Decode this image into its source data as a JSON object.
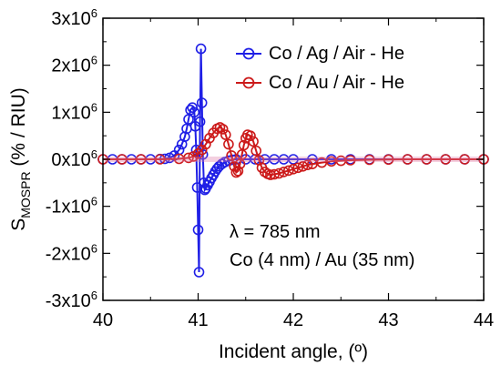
{
  "chart_data": {
    "type": "scatter",
    "xlabel": "Incident angle, (º)",
    "ylabel": "S",
    "ylabel_subscript": "MOSPR",
    "ylabel_suffix": " (% / RIU)",
    "xlim": [
      40,
      44
    ],
    "ylim": [
      -3000000,
      3000000
    ],
    "x_ticks": [
      40,
      41,
      42,
      43,
      44
    ],
    "x_tick_labels": [
      "40",
      "41",
      "42",
      "43",
      "44"
    ],
    "y_ticks": [
      3000000,
      2000000,
      1000000,
      0,
      -1000000,
      -2000000,
      -3000000
    ],
    "y_tick_labels": [
      {
        "base": "3x10",
        "exp": "6"
      },
      {
        "base": "2x10",
        "exp": "6"
      },
      {
        "base": "1x10",
        "exp": "6"
      },
      {
        "base": "0x10",
        "exp": "6"
      },
      {
        "base": "-1x10",
        "exp": "6"
      },
      {
        "base": "-2x10",
        "exp": "6"
      },
      {
        "base": "-3x10",
        "exp": "6"
      }
    ],
    "legend_position": "top-right",
    "series": [
      {
        "name": "Co / Ag / Air - He",
        "color": "#1f1fe6",
        "marker": "open-circle",
        "points": [
          [
            40.0,
            0
          ],
          [
            40.1,
            0
          ],
          [
            40.2,
            0
          ],
          [
            40.3,
            0
          ],
          [
            40.4,
            0
          ],
          [
            40.5,
            0
          ],
          [
            40.6,
            5000
          ],
          [
            40.65,
            10000
          ],
          [
            40.7,
            30000
          ],
          [
            40.75,
            80000
          ],
          [
            40.8,
            200000
          ],
          [
            40.83,
            320000
          ],
          [
            40.86,
            480000
          ],
          [
            40.88,
            650000
          ],
          [
            40.9,
            850000
          ],
          [
            40.92,
            1050000
          ],
          [
            40.94,
            1100000
          ],
          [
            40.96,
            1000000
          ],
          [
            40.97,
            700000
          ],
          [
            40.98,
            200000
          ],
          [
            40.99,
            -600000
          ],
          [
            41.0,
            -1500000
          ],
          [
            41.01,
            -2400000
          ],
          [
            41.02,
            800000
          ],
          [
            41.03,
            2350000
          ],
          [
            41.04,
            1200000
          ],
          [
            41.05,
            100000
          ],
          [
            41.06,
            -500000
          ],
          [
            41.07,
            -650000
          ],
          [
            41.08,
            -620000
          ],
          [
            41.1,
            -550000
          ],
          [
            41.12,
            -480000
          ],
          [
            41.14,
            -400000
          ],
          [
            41.16,
            -330000
          ],
          [
            41.18,
            -260000
          ],
          [
            41.2,
            -200000
          ],
          [
            41.22,
            -150000
          ],
          [
            41.25,
            -100000
          ],
          [
            41.28,
            -60000
          ],
          [
            41.32,
            -30000
          ],
          [
            41.36,
            -10000
          ],
          [
            41.4,
            0
          ],
          [
            41.5,
            0
          ],
          [
            41.6,
            0
          ],
          [
            41.7,
            0
          ],
          [
            41.8,
            0
          ],
          [
            41.9,
            0
          ],
          [
            42.0,
            0
          ],
          [
            42.2,
            0
          ],
          [
            42.4,
            0
          ],
          [
            42.6,
            0
          ],
          [
            42.8,
            0
          ],
          [
            43.0,
            0
          ],
          [
            43.2,
            0
          ],
          [
            43.4,
            0
          ],
          [
            43.6,
            0
          ],
          [
            43.8,
            0
          ],
          [
            44.0,
            0
          ]
        ]
      },
      {
        "name": "Co / Au / Air - He",
        "color": "#cc1a1a",
        "marker": "open-circle",
        "points": [
          [
            40.0,
            0
          ],
          [
            40.2,
            0
          ],
          [
            40.4,
            0
          ],
          [
            40.6,
            0
          ],
          [
            40.8,
            10000
          ],
          [
            40.9,
            30000
          ],
          [
            40.95,
            60000
          ],
          [
            41.0,
            120000
          ],
          [
            41.04,
            200000
          ],
          [
            41.08,
            320000
          ],
          [
            41.12,
            450000
          ],
          [
            41.16,
            560000
          ],
          [
            41.2,
            650000
          ],
          [
            41.23,
            680000
          ],
          [
            41.26,
            640000
          ],
          [
            41.29,
            520000
          ],
          [
            41.32,
            320000
          ],
          [
            41.35,
            80000
          ],
          [
            41.38,
            -150000
          ],
          [
            41.4,
            -280000
          ],
          [
            41.42,
            -250000
          ],
          [
            41.44,
            -100000
          ],
          [
            41.46,
            100000
          ],
          [
            41.48,
            300000
          ],
          [
            41.5,
            450000
          ],
          [
            41.52,
            520000
          ],
          [
            41.55,
            500000
          ],
          [
            41.58,
            380000
          ],
          [
            41.61,
            180000
          ],
          [
            41.64,
            -20000
          ],
          [
            41.67,
            -180000
          ],
          [
            41.7,
            -270000
          ],
          [
            41.73,
            -310000
          ],
          [
            41.76,
            -330000
          ],
          [
            41.8,
            -320000
          ],
          [
            41.85,
            -300000
          ],
          [
            41.9,
            -270000
          ],
          [
            41.95,
            -240000
          ],
          [
            42.0,
            -210000
          ],
          [
            42.05,
            -180000
          ],
          [
            42.1,
            -150000
          ],
          [
            42.15,
            -120000
          ],
          [
            42.2,
            -100000
          ],
          [
            42.3,
            -70000
          ],
          [
            42.4,
            -45000
          ],
          [
            42.5,
            -30000
          ],
          [
            42.6,
            -20000
          ],
          [
            42.8,
            -10000
          ],
          [
            43.0,
            -5000
          ],
          [
            43.2,
            0
          ],
          [
            43.4,
            0
          ],
          [
            43.6,
            0
          ],
          [
            43.8,
            0
          ],
          [
            44.0,
            0
          ]
        ]
      }
    ],
    "annotations": [
      {
        "text": "λ = 785 nm"
      },
      {
        "text": "Co (4 nm) / Au (35 nm)"
      }
    ]
  }
}
